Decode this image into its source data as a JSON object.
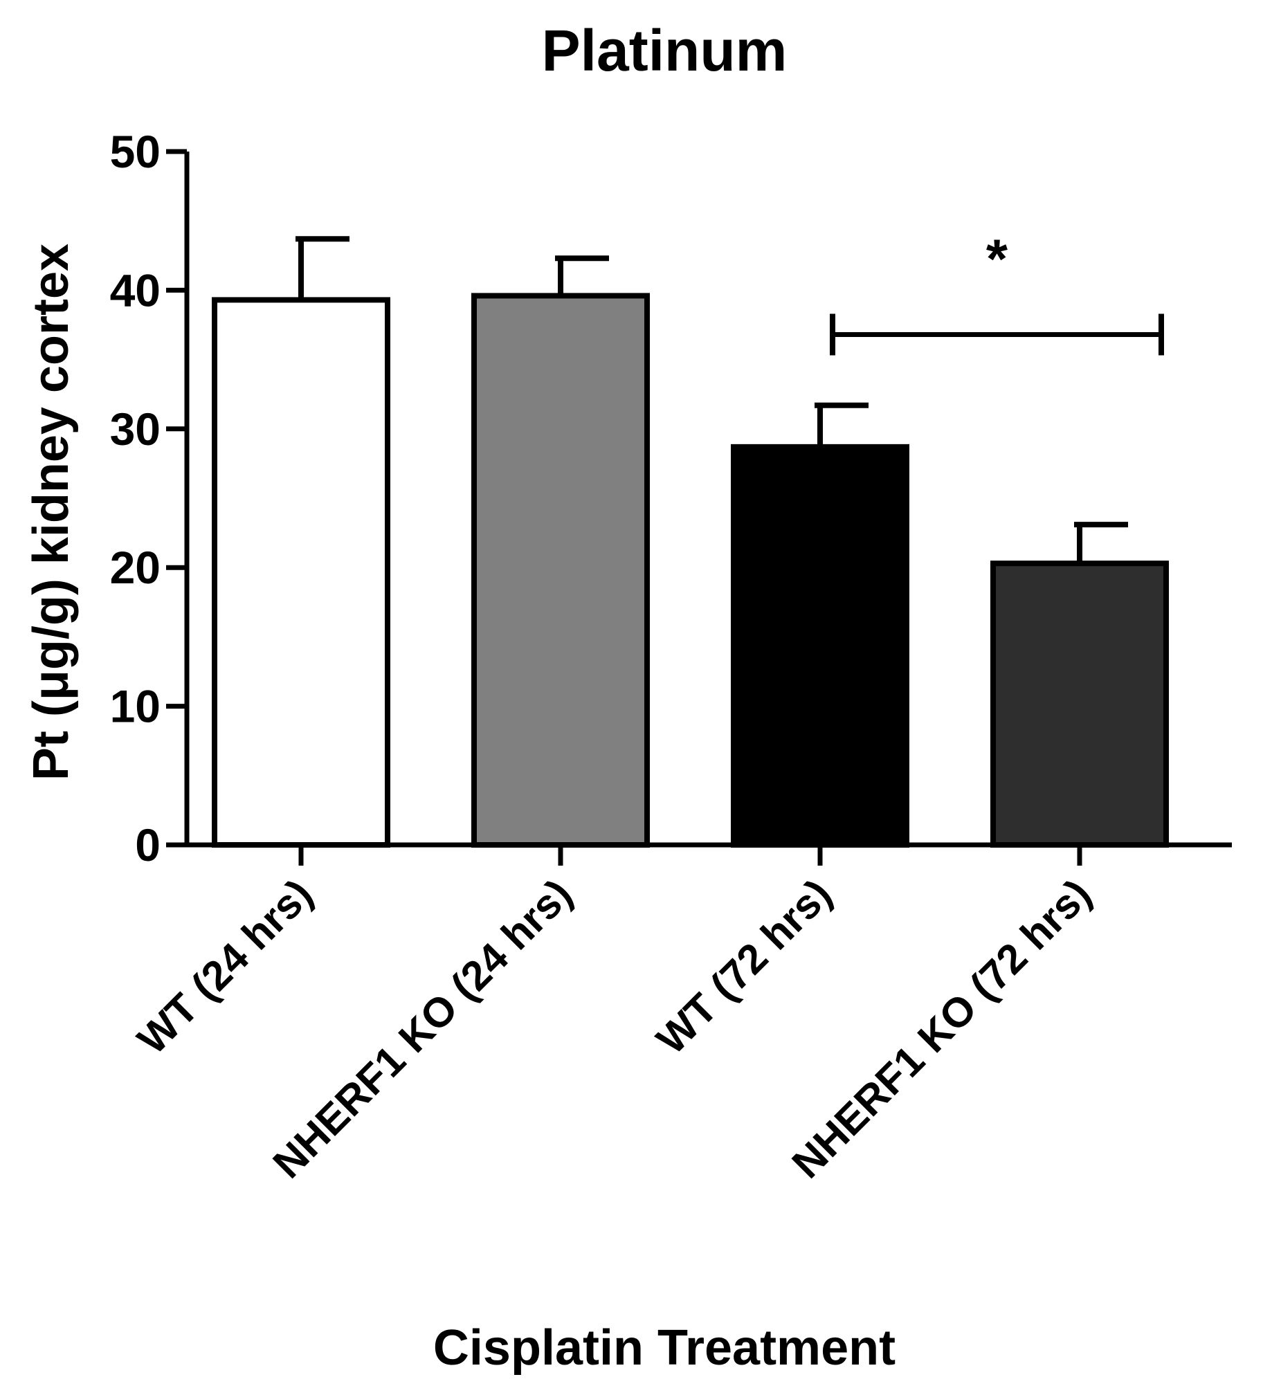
{
  "chart_data": {
    "type": "bar",
    "title": "Platinum",
    "xlabel": "Cisplatin Treatment",
    "ylabel": "Pt (μg/g) kidney cortex",
    "ylim": [
      0,
      50
    ],
    "yticks": [
      0,
      10,
      20,
      30,
      40,
      50
    ],
    "grid": false,
    "categories": [
      "WT (24 hrs)",
      "NHERF1 KO (24 hrs)",
      "WT (72 hrs)",
      "NHERF1 KO (72 hrs)"
    ],
    "values": [
      39.3,
      39.6,
      28.7,
      20.3
    ],
    "errors": [
      4.4,
      2.7,
      3.0,
      2.8
    ],
    "colors": [
      "#ffffff",
      "#808080",
      "#000000",
      "#2e2e2e"
    ],
    "significance": {
      "from_index": 2,
      "to_index": 3,
      "label": "*",
      "y": 36.8
    }
  }
}
